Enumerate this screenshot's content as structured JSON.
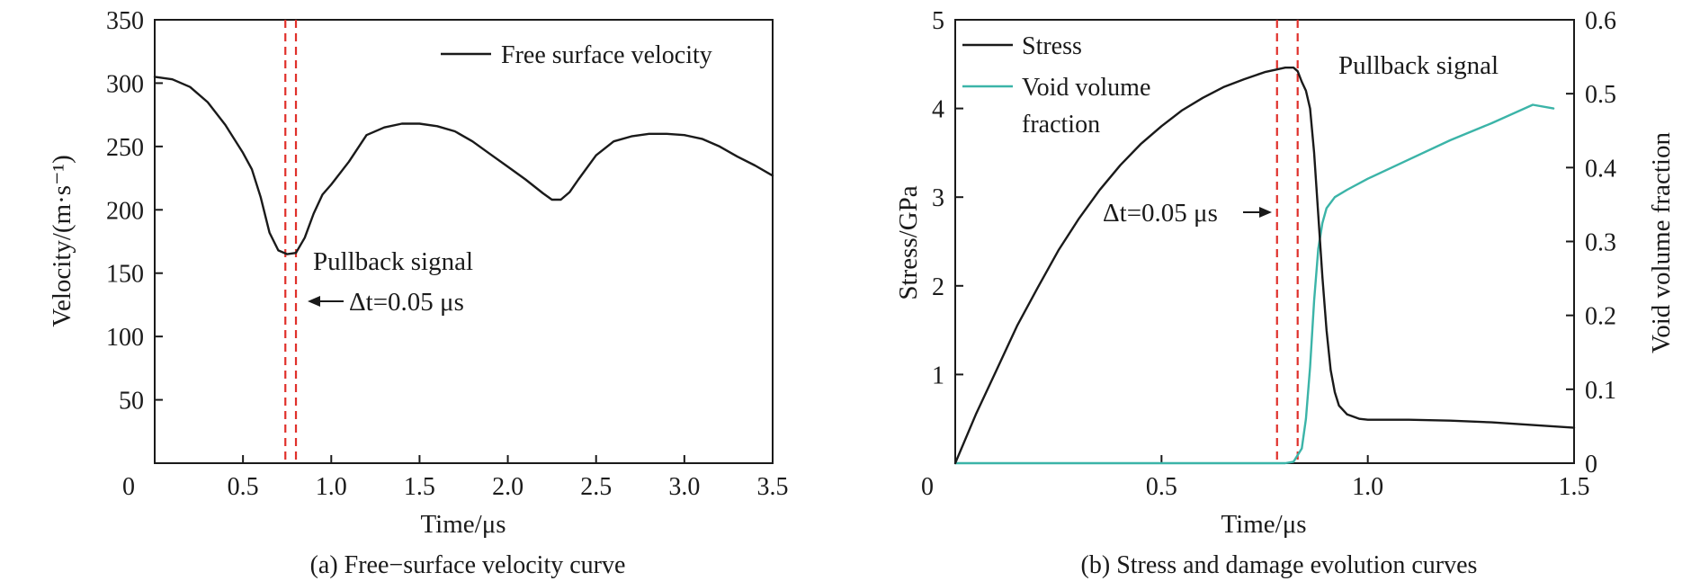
{
  "colors": {
    "black": "#1a1a1a",
    "teal": "#3bb4a8",
    "red": "#e0302a"
  },
  "chart_data": [
    {
      "id": "a",
      "type": "line",
      "caption": "(a) Free−surface velocity curve",
      "xlabel": "Time/μs",
      "ylabel": "Velocity/(m·s⁻¹)",
      "xlim": [
        0,
        3.5
      ],
      "ylim": [
        0,
        350
      ],
      "xticks": [
        {
          "v": 0,
          "label": "0"
        },
        {
          "v": 0.5,
          "label": "0.5"
        },
        {
          "v": 1.0,
          "label": "1.0"
        },
        {
          "v": 1.5,
          "label": "1.5"
        },
        {
          "v": 2.0,
          "label": "2.0"
        },
        {
          "v": 2.5,
          "label": "2.5"
        },
        {
          "v": 3.0,
          "label": "3.0"
        },
        {
          "v": 3.5,
          "label": "3.5"
        }
      ],
      "yticks": [
        {
          "v": 50,
          "label": "50"
        },
        {
          "v": 100,
          "label": "100"
        },
        {
          "v": 150,
          "label": "150"
        },
        {
          "v": 200,
          "label": "200"
        },
        {
          "v": 250,
          "label": "250"
        },
        {
          "v": 300,
          "label": "300"
        },
        {
          "v": 350,
          "label": "350"
        }
      ],
      "legend": "top-right",
      "series": [
        {
          "name": "Free surface velocity",
          "color": "#1a1a1a",
          "x": [
            0,
            0.1,
            0.2,
            0.3,
            0.4,
            0.5,
            0.55,
            0.6,
            0.65,
            0.7,
            0.75,
            0.8,
            0.85,
            0.9,
            0.95,
            1.0,
            1.1,
            1.2,
            1.3,
            1.4,
            1.5,
            1.6,
            1.7,
            1.8,
            1.9,
            2.0,
            2.1,
            2.2,
            2.25,
            2.3,
            2.35,
            2.4,
            2.5,
            2.6,
            2.7,
            2.8,
            2.9,
            3.0,
            3.1,
            3.2,
            3.3,
            3.4,
            3.5
          ],
          "values": [
            305,
            303,
            297,
            285,
            267,
            245,
            232,
            210,
            182,
            168,
            165,
            166,
            178,
            197,
            212,
            220,
            238,
            259,
            265,
            268,
            268,
            266,
            262,
            254,
            244,
            234,
            224,
            213,
            208,
            208,
            214,
            224,
            243,
            254,
            258,
            260,
            260,
            259,
            256,
            250,
            242,
            235,
            227
          ]
        }
      ],
      "markers_x": [
        0.74,
        0.8
      ],
      "annotations": {
        "pullback": "Pullback signal",
        "dt": "Δt=0.05 μs"
      }
    },
    {
      "id": "b",
      "type": "line",
      "caption": "(b) Stress and damage evolution curves",
      "xlabel": "Time/μs",
      "ylabel": "Stress/GPa",
      "ylabel_right": "Void volume fraction",
      "xlim": [
        0,
        1.5
      ],
      "ylim": [
        0,
        5
      ],
      "ylim_right": [
        0,
        0.6
      ],
      "xticks": [
        {
          "v": 0,
          "label": "0"
        },
        {
          "v": 0.5,
          "label": "0.5"
        },
        {
          "v": 1.0,
          "label": "1.0"
        },
        {
          "v": 1.5,
          "label": "1.5"
        }
      ],
      "yticks": [
        {
          "v": 1,
          "label": "1"
        },
        {
          "v": 2,
          "label": "2"
        },
        {
          "v": 3,
          "label": "3"
        },
        {
          "v": 4,
          "label": "4"
        },
        {
          "v": 5,
          "label": "5"
        }
      ],
      "yticks_right": [
        {
          "v": 0,
          "label": "0"
        },
        {
          "v": 0.1,
          "label": "0.1"
        },
        {
          "v": 0.2,
          "label": "0.2"
        },
        {
          "v": 0.3,
          "label": "0.3"
        },
        {
          "v": 0.4,
          "label": "0.4"
        },
        {
          "v": 0.5,
          "label": "0.5"
        },
        {
          "v": 0.6,
          "label": "0.6"
        }
      ],
      "legend": "top-left",
      "series": [
        {
          "name": "Stress",
          "axis": "left",
          "color": "#1a1a1a",
          "x": [
            0,
            0.05,
            0.1,
            0.15,
            0.2,
            0.25,
            0.3,
            0.35,
            0.4,
            0.45,
            0.5,
            0.55,
            0.6,
            0.65,
            0.7,
            0.75,
            0.79,
            0.8,
            0.82,
            0.83,
            0.84,
            0.85,
            0.86,
            0.87,
            0.88,
            0.89,
            0.9,
            0.91,
            0.92,
            0.93,
            0.95,
            0.98,
            1.0,
            1.1,
            1.2,
            1.3,
            1.4,
            1.5
          ],
          "values": [
            0,
            0.55,
            1.05,
            1.55,
            1.98,
            2.4,
            2.76,
            3.08,
            3.36,
            3.6,
            3.8,
            3.98,
            4.12,
            4.24,
            4.33,
            4.41,
            4.45,
            4.46,
            4.46,
            4.42,
            4.3,
            4.2,
            4.0,
            3.5,
            2.8,
            2.1,
            1.5,
            1.05,
            0.8,
            0.65,
            0.55,
            0.5,
            0.49,
            0.49,
            0.48,
            0.46,
            0.43,
            0.4
          ]
        },
        {
          "name": "Void volume fraction",
          "axis": "right",
          "color": "#3bb4a8",
          "x": [
            0,
            0.8,
            0.82,
            0.84,
            0.85,
            0.86,
            0.87,
            0.88,
            0.89,
            0.9,
            0.92,
            0.95,
            1.0,
            1.1,
            1.2,
            1.3,
            1.4,
            1.45
          ],
          "values": [
            0,
            0,
            0.002,
            0.02,
            0.06,
            0.13,
            0.22,
            0.29,
            0.325,
            0.345,
            0.36,
            0.37,
            0.385,
            0.411,
            0.437,
            0.46,
            0.485,
            0.48
          ]
        }
      ],
      "markers_x": [
        0.78,
        0.83
      ],
      "annotations": {
        "pullback": "Pullback signal",
        "dt": "Δt=0.05 μs"
      },
      "legend_labels": {
        "stress": "Stress",
        "void_line1": "Void volume",
        "void_line2": "fraction"
      }
    }
  ]
}
